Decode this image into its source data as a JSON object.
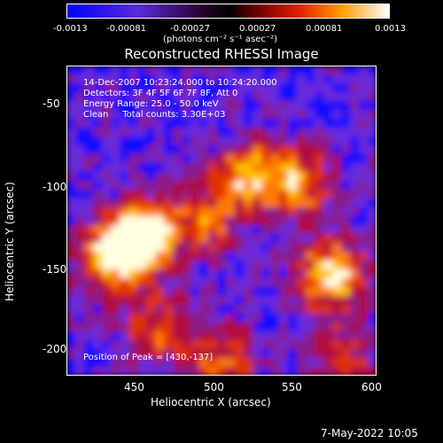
{
  "colorbar": {
    "ticks": [
      "-0.0013",
      "-0.00081",
      "-0.00027",
      "0.00027",
      "0.00081",
      "0.0013"
    ],
    "units": "(photons cm⁻² s⁻¹ asec⁻²)"
  },
  "title": "Reconstructed RHESSI Image",
  "annotations": {
    "time_range": "14-Dec-2007 10:23:24.000 to 10:24:20.000",
    "detectors": "Detectors: 3F 4F 5F 6F 7F 8F, Att 0",
    "energy_range": "Energy Range: 25.0 - 50.0 keV",
    "algorithm": "Clean     Total counts: 3.30E+03",
    "peak": "Position of Peak = [430,-137]"
  },
  "axes": {
    "xlabel": "Heliocentric X (arcsec)",
    "ylabel": "Heliocentric Y (arcsec)",
    "xticks": [
      "450",
      "500",
      "550",
      "600"
    ],
    "yticks": [
      "-50",
      "-100",
      "-150",
      "-200"
    ]
  },
  "footer": {
    "timestamp": "7-May-2022 10:05"
  },
  "chart_data": {
    "type": "heatmap",
    "xlim": [
      410,
      600
    ],
    "ylim": [
      -220,
      -30
    ],
    "colormap": [
      "#1010ff",
      "#6a2bd8",
      "#8a1a8a",
      "#b01040",
      "#e03000",
      "#ff7a00",
      "#ffc000",
      "#ffffe0"
    ]
  }
}
